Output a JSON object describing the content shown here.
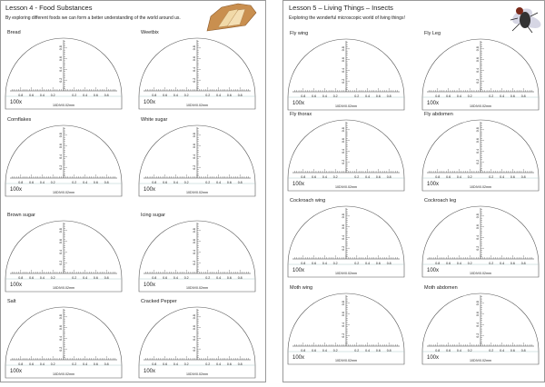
{
  "left_page": {
    "title": "Lesson 4  - Food Substances",
    "subtitle": "By exploring different foods we can form a better understanding of the world around us.",
    "panels": [
      "Bread",
      "Weetbix",
      "Cornflakes",
      "White sugar",
      "Brown sugar",
      "Icing sugar",
      "Salt",
      "Cracked Pepper"
    ]
  },
  "right_page": {
    "title": "Lesson 5 – Living Things – Insects",
    "subtitle": "Exploring the wonderful microscopic world of living things!",
    "panels": [
      "Fly wing",
      "Fly Leg",
      "Fly thorax",
      "Fly abdomen",
      "Cockroach wing",
      "Cockroach leg",
      "Moth wing",
      "Moth abdomen"
    ]
  },
  "reticle": {
    "scale_labels": [
      "0.8",
      "0.6",
      "0.4",
      "0.2"
    ],
    "magnification": "100x",
    "division": "10DIV/0.02mm"
  }
}
